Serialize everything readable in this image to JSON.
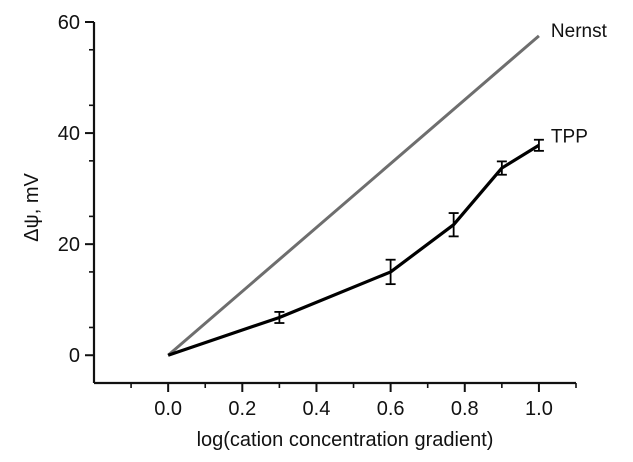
{
  "chart_data": {
    "type": "line",
    "xlabel": "log(cation concentration gradient)",
    "ylabel": "Δψ, mV",
    "xlim": [
      -0.2,
      1.1
    ],
    "ylim": [
      -5,
      60
    ],
    "x_ticks": [
      "0.0",
      "0.2",
      "0.4",
      "0.6",
      "0.8",
      "1.0"
    ],
    "y_ticks": [
      "0",
      "20",
      "40",
      "60"
    ],
    "grid": false,
    "series": [
      {
        "name": "Nernst",
        "color": "#6e6e6e",
        "points": [
          {
            "x": 0.0,
            "y": 0.0
          },
          {
            "x": 1.0,
            "y": 57.5
          }
        ]
      },
      {
        "name": "TPP",
        "color": "#000000",
        "points": [
          {
            "x": 0.0,
            "y": 0.0,
            "err": 0
          },
          {
            "x": 0.3,
            "y": 6.8,
            "err": 1.0
          },
          {
            "x": 0.6,
            "y": 15.0,
            "err": 2.2
          },
          {
            "x": 0.77,
            "y": 23.5,
            "err": 2.1
          },
          {
            "x": 0.9,
            "y": 33.7,
            "err": 1.2
          },
          {
            "x": 1.0,
            "y": 37.8,
            "err": 1.0
          }
        ]
      }
    ]
  }
}
